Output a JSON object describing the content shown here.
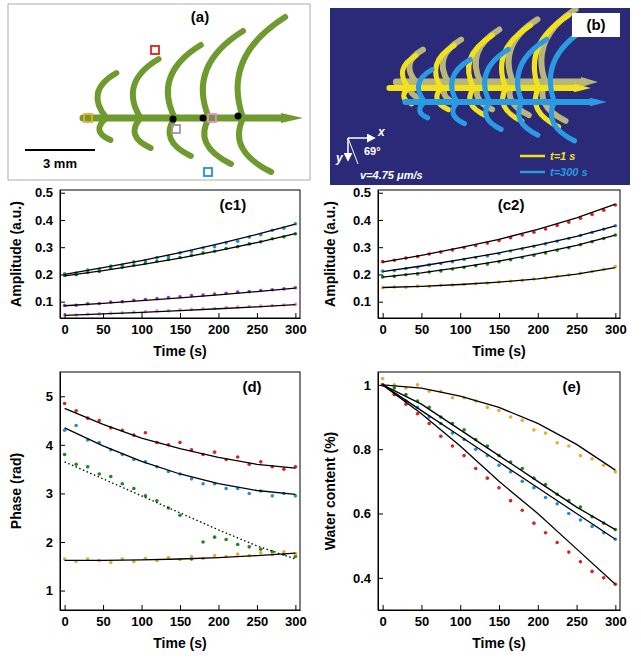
{
  "image_panels": [
    {
      "label": "(a)",
      "scale_bar": "3 mm"
    },
    {
      "label": "(b)",
      "x_axis": "x",
      "y_axis": "y",
      "angle": "69°",
      "velocity": "v=4.75 μm/s",
      "entries": [
        {
          "name": "t=1 s",
          "color": "#f2e21c"
        },
        {
          "name": "t=300 s",
          "color": "#2a9be3"
        }
      ]
    }
  ],
  "chart_data": [
    {
      "type": "scatter",
      "title": "(c1)",
      "xlabel": "Time (s)",
      "ylabel": "Amplitude (a.u.)",
      "xlim": [
        -6,
        306
      ],
      "ylim": [
        0.04,
        0.51
      ],
      "xticks": [
        0,
        50,
        100,
        150,
        200,
        250,
        300
      ],
      "yticks": [
        0.1,
        0.2,
        0.3,
        0.4,
        0.5
      ],
      "x": [
        0,
        15,
        30,
        45,
        60,
        75,
        90,
        105,
        120,
        135,
        150,
        165,
        180,
        195,
        210,
        225,
        240,
        255,
        270,
        285,
        300
      ],
      "series": [
        {
          "type": "scatter",
          "marker": "circle",
          "color": "#1e90e0",
          "values": [
            0.202,
            0.205,
            0.216,
            0.22,
            0.231,
            0.234,
            0.246,
            0.25,
            0.262,
            0.266,
            0.279,
            0.284,
            0.297,
            0.302,
            0.316,
            0.322,
            0.337,
            0.346,
            0.362,
            0.37,
            0.386
          ]
        },
        {
          "type": "scatter",
          "marker": "circle",
          "color": "#1a8a1a",
          "values": [
            0.196,
            0.199,
            0.207,
            0.211,
            0.222,
            0.226,
            0.234,
            0.241,
            0.249,
            0.255,
            0.262,
            0.27,
            0.279,
            0.285,
            0.295,
            0.302,
            0.312,
            0.32,
            0.331,
            0.338,
            0.349
          ]
        },
        {
          "type": "scatter",
          "marker": "circle",
          "color": "#9932cc",
          "values": [
            0.086,
            0.087,
            0.092,
            0.093,
            0.099,
            0.1,
            0.105,
            0.108,
            0.111,
            0.115,
            0.118,
            0.122,
            0.124,
            0.128,
            0.131,
            0.135,
            0.137,
            0.141,
            0.144,
            0.147,
            0.151
          ]
        },
        {
          "type": "scatter",
          "marker": "circle",
          "color": "#e58ad6",
          "values": [
            0.051,
            0.051,
            0.054,
            0.055,
            0.058,
            0.059,
            0.062,
            0.063,
            0.066,
            0.067,
            0.07,
            0.071,
            0.074,
            0.075,
            0.078,
            0.08,
            0.082,
            0.084,
            0.086,
            0.088,
            0.09
          ]
        },
        {
          "type": "line",
          "line_style": "solid",
          "color": "#000000",
          "x": [
            0,
            50,
            100,
            150,
            200,
            250,
            300
          ],
          "values": [
            0.2,
            0.225,
            0.251,
            0.28,
            0.312,
            0.347,
            0.385
          ]
        },
        {
          "type": "line",
          "line_style": "solid",
          "color": "#000000",
          "x": [
            0,
            50,
            100,
            150,
            200,
            250,
            300
          ],
          "values": [
            0.195,
            0.214,
            0.236,
            0.26,
            0.287,
            0.317,
            0.35
          ]
        },
        {
          "type": "line",
          "line_style": "solid",
          "color": "#000000",
          "x": [
            0,
            50,
            100,
            150,
            200,
            250,
            300
          ],
          "values": [
            0.085,
            0.094,
            0.104,
            0.114,
            0.125,
            0.137,
            0.15
          ]
        },
        {
          "type": "line",
          "line_style": "solid",
          "color": "#000000",
          "x": [
            0,
            50,
            100,
            150,
            200,
            250,
            300
          ],
          "values": [
            0.05,
            0.055,
            0.061,
            0.067,
            0.074,
            0.081,
            0.089
          ]
        }
      ]
    },
    {
      "type": "scatter",
      "title": "(c2)",
      "xlabel": "Time (s)",
      "ylabel": "Amplitude (a.u.)",
      "xlim": [
        -6,
        306
      ],
      "ylim": [
        0.04,
        0.51
      ],
      "xticks": [
        0,
        50,
        100,
        150,
        200,
        250,
        300
      ],
      "yticks": [
        0.1,
        0.2,
        0.3,
        0.4,
        0.5
      ],
      "x": [
        0,
        15,
        30,
        45,
        60,
        75,
        90,
        105,
        120,
        135,
        150,
        165,
        180,
        195,
        210,
        225,
        240,
        255,
        270,
        285,
        300
      ],
      "series": [
        {
          "type": "scatter",
          "marker": "circle",
          "color": "#e0201b",
          "values": [
            0.247,
            0.252,
            0.26,
            0.266,
            0.275,
            0.282,
            0.29,
            0.299,
            0.306,
            0.315,
            0.325,
            0.335,
            0.345,
            0.355,
            0.367,
            0.38,
            0.392,
            0.406,
            0.42,
            0.436,
            0.455
          ]
        },
        {
          "type": "scatter",
          "marker": "circle",
          "color": "#1e90e0",
          "values": [
            0.212,
            0.214,
            0.222,
            0.226,
            0.235,
            0.24,
            0.247,
            0.255,
            0.262,
            0.268,
            0.277,
            0.286,
            0.294,
            0.303,
            0.312,
            0.322,
            0.332,
            0.343,
            0.354,
            0.366,
            0.379
          ]
        },
        {
          "type": "scatter",
          "marker": "circle",
          "color": "#1a8a1a",
          "values": [
            0.191,
            0.193,
            0.199,
            0.202,
            0.209,
            0.213,
            0.22,
            0.226,
            0.232,
            0.238,
            0.247,
            0.254,
            0.262,
            0.27,
            0.279,
            0.289,
            0.298,
            0.309,
            0.32,
            0.332,
            0.345
          ]
        },
        {
          "type": "scatter",
          "marker": "circle",
          "color": "#e8ae2c",
          "values": [
            0.151,
            0.154,
            0.153,
            0.157,
            0.156,
            0.16,
            0.161,
            0.163,
            0.166,
            0.168,
            0.172,
            0.175,
            0.178,
            0.183,
            0.187,
            0.193,
            0.198,
            0.204,
            0.211,
            0.219,
            0.229
          ]
        },
        {
          "type": "line",
          "line_style": "solid",
          "color": "#000000",
          "x": [
            0,
            50,
            100,
            150,
            200,
            250,
            300
          ],
          "values": [
            0.245,
            0.27,
            0.298,
            0.329,
            0.365,
            0.408,
            0.458
          ]
        },
        {
          "type": "line",
          "line_style": "solid",
          "color": "#000000",
          "x": [
            0,
            50,
            100,
            150,
            200,
            250,
            300
          ],
          "values": [
            0.21,
            0.231,
            0.254,
            0.279,
            0.308,
            0.34,
            0.378
          ]
        },
        {
          "type": "line",
          "line_style": "solid",
          "color": "#000000",
          "x": [
            0,
            50,
            100,
            150,
            200,
            250,
            300
          ],
          "values": [
            0.19,
            0.206,
            0.226,
            0.249,
            0.276,
            0.307,
            0.344
          ]
        },
        {
          "type": "line",
          "line_style": "solid",
          "color": "#000000",
          "x": [
            0,
            50,
            100,
            150,
            200,
            250,
            300
          ],
          "values": [
            0.152,
            0.156,
            0.163,
            0.172,
            0.184,
            0.201,
            0.225
          ]
        }
      ]
    },
    {
      "type": "scatter",
      "title": "(d)",
      "xlabel": "Time (s)",
      "ylabel": "Phase (rad)",
      "xlim": [
        -6,
        306
      ],
      "ylim": [
        0.6,
        5.5
      ],
      "xticks": [
        0,
        50,
        100,
        150,
        200,
        250,
        300
      ],
      "yticks": [
        1,
        2,
        3,
        4,
        5
      ],
      "x": [
        0,
        15,
        30,
        45,
        60,
        75,
        90,
        105,
        120,
        135,
        150,
        165,
        180,
        195,
        210,
        225,
        240,
        255,
        270,
        285,
        300
      ],
      "series": [
        {
          "type": "scatter",
          "marker": "circle",
          "color": "#e0201b",
          "values": [
            4.85,
            4.7,
            4.55,
            4.5,
            4.35,
            4.3,
            4.2,
            4.25,
            4.05,
            4.0,
            4.05,
            3.9,
            3.8,
            3.85,
            3.7,
            3.75,
            3.6,
            3.65,
            3.55,
            3.5,
            3.55
          ]
        },
        {
          "type": "scatter",
          "marker": "circle",
          "color": "#1e90e0",
          "values": [
            4.3,
            4.4,
            4.1,
            4.05,
            3.9,
            3.8,
            3.7,
            3.65,
            3.55,
            3.45,
            3.4,
            3.3,
            3.2,
            3.2,
            3.1,
            3.1,
            3.0,
            3.05,
            2.95,
            3.0,
            2.95
          ]
        },
        {
          "type": "scatter",
          "marker": "circle",
          "color": "#1a8a1a",
          "values": [
            3.8,
            3.6,
            3.55,
            3.4,
            3.35,
            3.2,
            3.1,
            2.95,
            2.85,
            2.7,
            2.55,
            1.65,
            2.0,
            2.1,
            2.05,
            1.95,
            1.9,
            1.85,
            1.8,
            1.75,
            1.7
          ]
        },
        {
          "type": "scatter",
          "marker": "circle",
          "color": "#e8ae2c",
          "values": [
            1.65,
            1.6,
            1.65,
            1.62,
            1.58,
            1.65,
            1.6,
            1.66,
            1.62,
            1.68,
            1.64,
            1.7,
            1.66,
            1.72,
            1.7,
            1.75,
            1.72,
            1.78,
            1.74,
            1.8,
            1.76
          ]
        },
        {
          "type": "line",
          "line_style": "solid",
          "color": "#000000",
          "x": [
            0,
            50,
            100,
            150,
            200,
            250,
            300
          ],
          "values": [
            4.75,
            4.42,
            4.14,
            3.92,
            3.74,
            3.6,
            3.52
          ]
        },
        {
          "type": "line",
          "line_style": "solid",
          "color": "#000000",
          "x": [
            0,
            50,
            100,
            150,
            200,
            250,
            300
          ],
          "values": [
            4.35,
            3.98,
            3.66,
            3.4,
            3.2,
            3.06,
            2.98
          ]
        },
        {
          "type": "line",
          "line_style": "dotted",
          "color": "#000000",
          "x": [
            0,
            50,
            100,
            150,
            200,
            250,
            300
          ],
          "values": [
            3.65,
            3.3,
            2.95,
            2.6,
            2.25,
            1.92,
            1.65
          ]
        },
        {
          "type": "line",
          "line_style": "solid",
          "color": "#000000",
          "x": [
            0,
            50,
            100,
            150,
            200,
            250,
            300
          ],
          "values": [
            1.62,
            1.62,
            1.63,
            1.65,
            1.68,
            1.72,
            1.77
          ]
        }
      ]
    },
    {
      "type": "scatter",
      "title": "(e)",
      "xlabel": "Time (s)",
      "ylabel": "Water content (%)",
      "xlim": [
        -6,
        306
      ],
      "ylim": [
        0.3,
        1.04
      ],
      "xticks": [
        0,
        50,
        100,
        150,
        200,
        250,
        300
      ],
      "yticks": [
        0.4,
        0.6,
        0.8,
        1
      ],
      "x": [
        0,
        15,
        30,
        45,
        60,
        75,
        90,
        105,
        120,
        135,
        150,
        165,
        180,
        195,
        210,
        225,
        240,
        255,
        270,
        285,
        300
      ],
      "series": [
        {
          "type": "scatter",
          "marker": "circle",
          "color": "#e8ae2c",
          "values": [
            1.02,
            1.0,
            0.99,
            1.0,
            0.98,
            0.98,
            0.96,
            0.96,
            0.95,
            0.93,
            0.92,
            0.9,
            0.89,
            0.86,
            0.85,
            0.82,
            0.81,
            0.78,
            0.77,
            0.75,
            0.73
          ]
        },
        {
          "type": "scatter",
          "marker": "circle",
          "color": "#1a8a1a",
          "values": [
            1.0,
            0.99,
            0.97,
            0.95,
            0.93,
            0.9,
            0.88,
            0.86,
            0.83,
            0.81,
            0.78,
            0.76,
            0.74,
            0.71,
            0.69,
            0.66,
            0.64,
            0.62,
            0.59,
            0.57,
            0.55
          ]
        },
        {
          "type": "scatter",
          "marker": "circle",
          "color": "#1e90e0",
          "values": [
            1.0,
            0.97,
            0.95,
            0.93,
            0.9,
            0.88,
            0.85,
            0.83,
            0.8,
            0.78,
            0.75,
            0.73,
            0.7,
            0.68,
            0.65,
            0.63,
            0.6,
            0.58,
            0.56,
            0.54,
            0.52
          ]
        },
        {
          "type": "scatter",
          "marker": "circle",
          "color": "#e0201b",
          "values": [
            1.0,
            0.97,
            0.94,
            0.91,
            0.88,
            0.84,
            0.81,
            0.78,
            0.74,
            0.71,
            0.68,
            0.64,
            0.61,
            0.57,
            0.54,
            0.51,
            0.48,
            0.45,
            0.42,
            0.4,
            0.38
          ]
        },
        {
          "type": "line",
          "line_style": "solid",
          "color": "#000000",
          "x": [
            0,
            50,
            100,
            150,
            200,
            250,
            300
          ],
          "values": [
            1.0,
            0.99,
            0.965,
            0.93,
            0.88,
            0.815,
            0.735
          ]
        },
        {
          "type": "line",
          "line_style": "solid",
          "color": "#000000",
          "x": [
            0,
            50,
            100,
            150,
            200,
            250,
            300
          ],
          "values": [
            1.0,
            0.94,
            0.86,
            0.78,
            0.7,
            0.62,
            0.55
          ]
        },
        {
          "type": "line",
          "line_style": "solid",
          "color": "#000000",
          "x": [
            0,
            50,
            100,
            150,
            200,
            250,
            300
          ],
          "values": [
            1.0,
            0.92,
            0.84,
            0.76,
            0.68,
            0.6,
            0.52
          ]
        },
        {
          "type": "line",
          "line_style": "solid",
          "color": "#000000",
          "x": [
            0,
            50,
            100,
            150,
            200,
            250,
            300
          ],
          "values": [
            1.0,
            0.91,
            0.81,
            0.7,
            0.6,
            0.49,
            0.38
          ]
        }
      ]
    }
  ]
}
